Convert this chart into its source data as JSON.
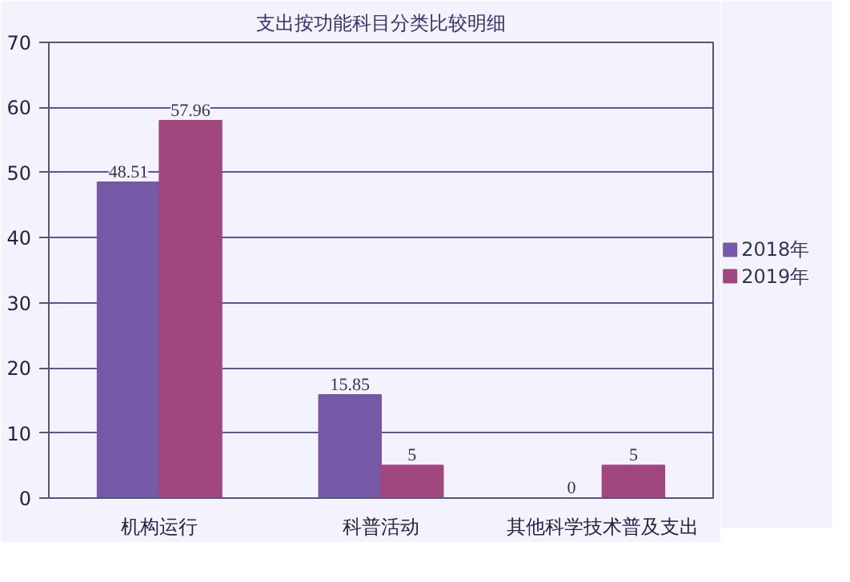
{
  "chart_data": {
    "type": "bar",
    "title": "支出按功能科目分类比较明细",
    "categories": [
      "机构运行",
      "科普活动",
      "其他科学技术普及支出"
    ],
    "series": [
      {
        "name": "2018年",
        "color": "#7559a6",
        "values": [
          48.51,
          15.85,
          0
        ]
      },
      {
        "name": "2019年",
        "color": "#a0477f",
        "values": [
          57.96,
          5,
          5
        ]
      }
    ],
    "ylim": [
      0,
      70
    ],
    "yticks": [
      0,
      10,
      20,
      30,
      40,
      50,
      60,
      70
    ],
    "grid": "y",
    "legend": "right",
    "data_labels": true
  }
}
